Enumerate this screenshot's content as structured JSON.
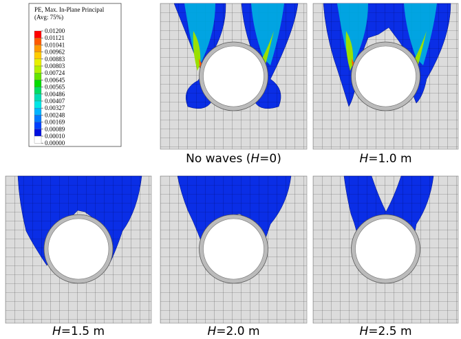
{
  "legend": {
    "title_line1": "PE, Max. In-Plane Principal",
    "title_line2": "(Avg: 75%)",
    "labels": [
      "0.01200",
      "0.01121",
      "0.01041",
      "0.00962",
      "0.00883",
      "0.00803",
      "0.00724",
      "0.00645",
      "0.00565",
      "0.00486",
      "0.00407",
      "0.00327",
      "0.00248",
      "0.00169",
      "0.00089",
      "0.00010",
      "0.00000"
    ],
    "colors": [
      "#ff0000",
      "#ff5a00",
      "#ff9a00",
      "#ffcc00",
      "#e8f000",
      "#b4f000",
      "#64e400",
      "#00dc00",
      "#00dc64",
      "#00dcb4",
      "#00e6e6",
      "#00b4ff",
      "#0078ff",
      "#0040ff",
      "#0010e0",
      "#ffffff"
    ]
  },
  "panels": [
    {
      "caption": {
        "prefix": "No waves (",
        "var": "H",
        "suffix": "=0)"
      }
    },
    {
      "caption": {
        "prefix": "",
        "var": "H",
        "suffix": "=1.0 m"
      }
    },
    {
      "caption": {
        "prefix": "",
        "var": "H",
        "suffix": "=1.5 m"
      }
    },
    {
      "caption": {
        "prefix": "",
        "var": "H",
        "suffix": "=2.0 m"
      }
    },
    {
      "caption": {
        "prefix": "",
        "var": "H",
        "suffix": "=2.5 m"
      }
    }
  ]
}
